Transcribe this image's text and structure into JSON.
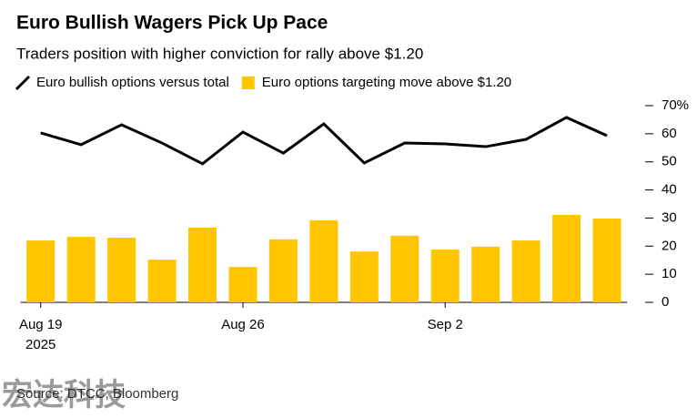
{
  "chart_data": {
    "type": "bar_line",
    "title": "Euro Bullish Wagers Pick Up Pace",
    "subtitle": "Traders position with higher conviction for rally above $1.20",
    "categories": [
      "Aug 19",
      null,
      null,
      null,
      null,
      "Aug 26",
      null,
      null,
      null,
      null,
      "Sep 2",
      null,
      null,
      null,
      null
    ],
    "year_label": "2025",
    "series": [
      {
        "name": "Euro bullish options versus total",
        "type": "line",
        "color": "#000000",
        "values": [
          60.3,
          56.1,
          63.2,
          56.7,
          49.3,
          60.6,
          53.1,
          63.5,
          49.6,
          56.7,
          56.4,
          55.4,
          58.0,
          65.8,
          59.3
        ]
      },
      {
        "name": "Euro options targeting move above $1.20",
        "type": "bar",
        "color": "#ffc600",
        "values": [
          22.0,
          23.3,
          23.0,
          15.2,
          26.6,
          12.6,
          22.4,
          29.2,
          18.1,
          23.7,
          18.8,
          19.8,
          22.0,
          31.1,
          29.8
        ]
      }
    ],
    "ylim": [
      0,
      70
    ],
    "yticks": [
      0,
      10,
      20,
      30,
      40,
      50,
      60,
      {
        "value": 70,
        "label": "70%"
      }
    ],
    "source": "Source: DTCC, Bloomberg",
    "watermark": "宏达科技"
  }
}
